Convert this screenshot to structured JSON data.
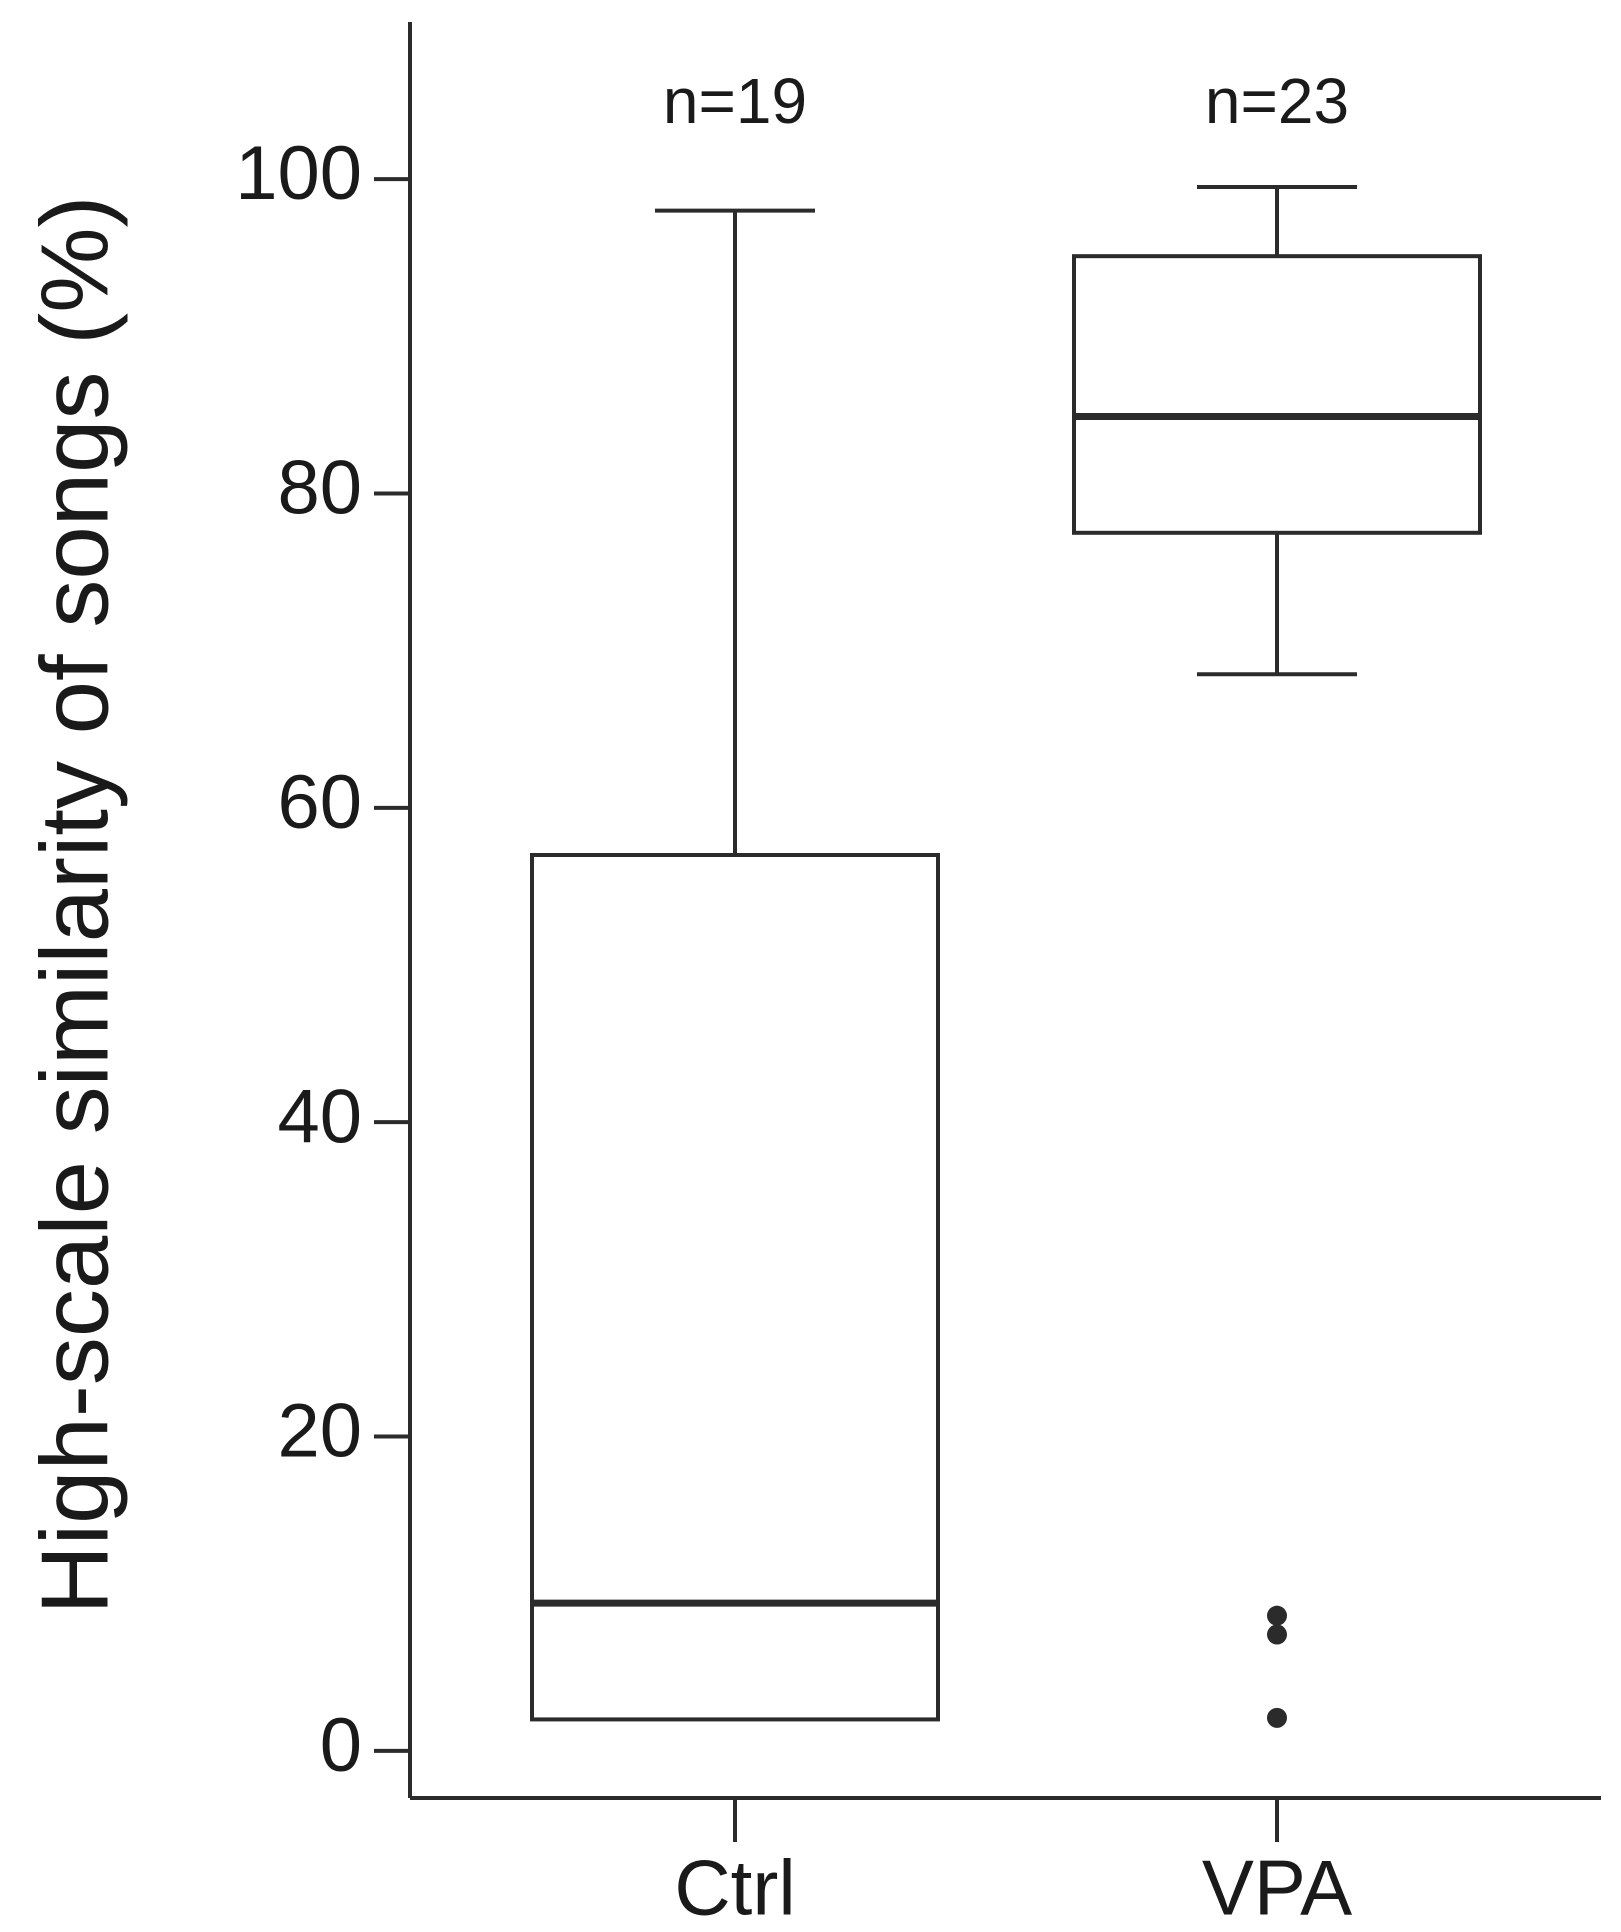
{
  "chart_data": {
    "type": "box",
    "y_label": "High-scale similarity of songs (%)",
    "categories": [
      "Ctrl",
      "VPA"
    ],
    "annotations": [
      "n=19",
      "n=23"
    ],
    "boxes": [
      {
        "whisker_low": 2,
        "q1": 2,
        "median": 9.4,
        "q3": 57,
        "whisker_high": 98,
        "outliers": []
      },
      {
        "whisker_low": 68.5,
        "q1": 77.5,
        "median": 84.9,
        "q3": 95.1,
        "whisker_high": 99.5,
        "outliers": [
          8.6,
          7.4,
          2.1
        ]
      }
    ],
    "color": "#2b2b2b",
    "ylim": [
      -3,
      110
    ],
    "yticks": [
      0,
      20,
      40,
      60,
      80,
      100
    ]
  }
}
